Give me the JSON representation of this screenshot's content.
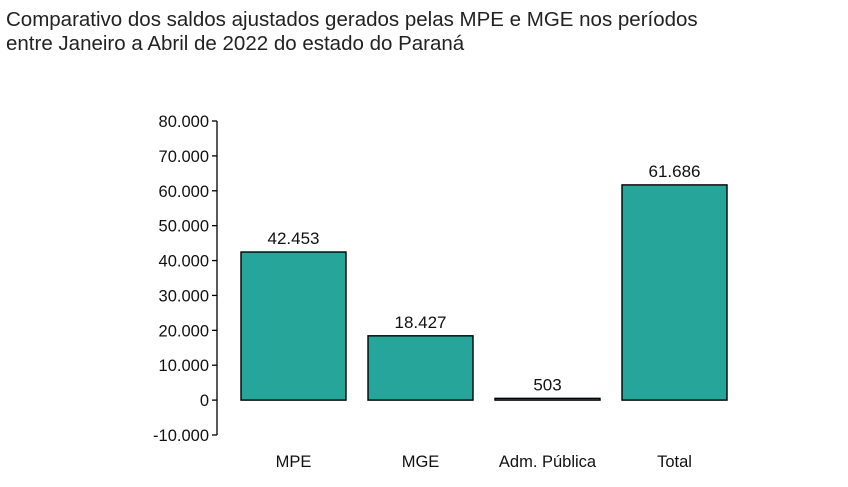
{
  "chart_data": {
    "type": "bar",
    "title": "Comparativo dos saldos ajustados gerados pelas MPE e MGE nos períodos\n entre Janeiro a Abril de 2022 do estado do Paraná",
    "xlabel": "",
    "ylabel": "",
    "categories": [
      "MPE",
      "MGE",
      "Adm. Pública",
      "Total"
    ],
    "values": [
      42453,
      18427,
      503,
      61686
    ],
    "data_labels": [
      "42.453",
      "18.427",
      "503",
      "61.686"
    ],
    "ylim": [
      -10000,
      80000
    ],
    "yticks": [
      -10000,
      0,
      10000,
      20000,
      30000,
      40000,
      50000,
      60000,
      70000,
      80000
    ],
    "ytick_labels": [
      "-10.000",
      "0",
      "10.000",
      "20.000",
      "30.000",
      "40.000",
      "50.000",
      "60.000",
      "70.000",
      "80.000"
    ],
    "grid": false,
    "legend": "none",
    "bar_color": "#26a69a",
    "bar_edge_color": "#000000"
  }
}
